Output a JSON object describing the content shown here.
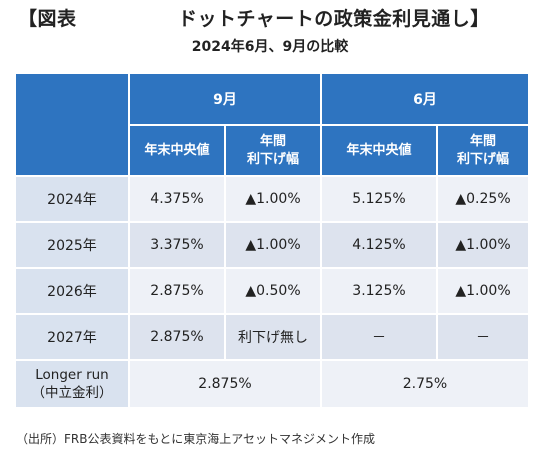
{
  "title_part1": "【図表",
  "title_part2": "ドットチャートの政策金利見通し】",
  "subtitle": "2024年6月、9月の比較",
  "headers": {
    "sep": "9月",
    "jun": "6月",
    "col_median": "年末中央値",
    "col_cut_line1": "年間",
    "col_cut_line2": "利下げ幅"
  },
  "rows": [
    {
      "label": "2024年",
      "sep_median": "4.375%",
      "sep_cut": "▲1.00%",
      "jun_median": "5.125%",
      "jun_cut": "▲0.25%"
    },
    {
      "label": "2025年",
      "sep_median": "3.375%",
      "sep_cut": "▲1.00%",
      "jun_median": "4.125%",
      "jun_cut": "▲1.00%"
    },
    {
      "label": "2026年",
      "sep_median": "2.875%",
      "sep_cut": "▲0.50%",
      "jun_median": "3.125%",
      "jun_cut": "▲1.00%"
    },
    {
      "label": "2027年",
      "sep_median": "2.875%",
      "sep_cut": "利下げ無し",
      "jun_median": "－",
      "jun_cut": "－"
    }
  ],
  "longer_run": {
    "label_line1": "Longer run",
    "label_line2": "（中立金利）",
    "sep": "2.875%",
    "jun": "2.75%"
  },
  "source": "（出所）FRB公表資料をもとに東京海上アセットマネジメント作成"
}
